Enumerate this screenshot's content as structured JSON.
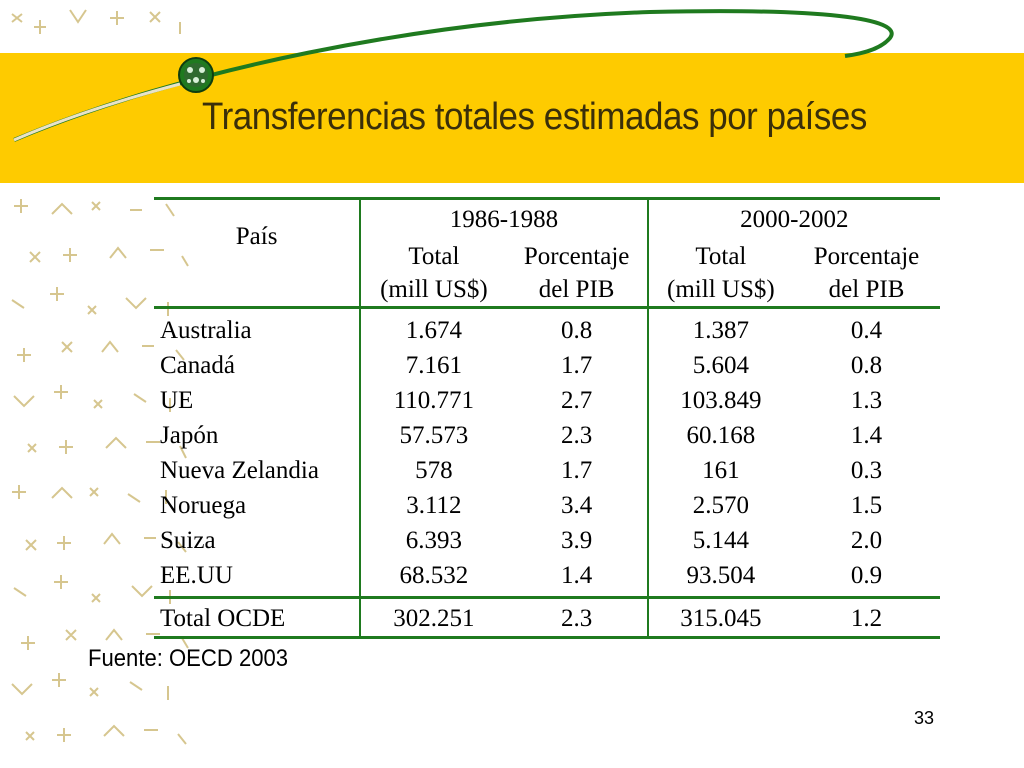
{
  "slide": {
    "title": "Transferencias totales estimadas por países",
    "source": "Fuente: OECD 2003",
    "number": "33",
    "colors": {
      "band": "#fecb00",
      "accent": "#1f7a1f",
      "swoosh": "#1f7a1f"
    }
  },
  "table": {
    "header": {
      "country": "País",
      "period_1": "1986-1988",
      "period_2": "2000-2002",
      "total_1": "Total",
      "total_unit_1": "(mill US$)",
      "pct_1": "Porcentaje",
      "pct_unit_1": "del PIB",
      "total_2": "Total",
      "total_unit_2": "(mill US$)",
      "pct_2": "Porcentaje",
      "pct_unit_2": "del PIB"
    },
    "rows": [
      {
        "country": "Australia",
        "total_8688": "1.674",
        "pct_8688": "0.8",
        "total_0002": "1.387",
        "pct_0002": "0.4"
      },
      {
        "country": "Canadá",
        "total_8688": "7.161",
        "pct_8688": "1.7",
        "total_0002": "5.604",
        "pct_0002": "0.8"
      },
      {
        "country": "UE",
        "total_8688": "110.771",
        "pct_8688": "2.7",
        "total_0002": "103.849",
        "pct_0002": "1.3"
      },
      {
        "country": "Japón",
        "total_8688": "57.573",
        "pct_8688": "2.3",
        "total_0002": "60.168",
        "pct_0002": "1.4"
      },
      {
        "country": "Nueva Zelandia",
        "total_8688": "578",
        "pct_8688": "1.7",
        "total_0002": "161",
        "pct_0002": "0.3"
      },
      {
        "country": "Noruega",
        "total_8688": "3.112",
        "pct_8688": "3.4",
        "total_0002": "2.570",
        "pct_0002": "1.5"
      },
      {
        "country": "Suiza",
        "total_8688": "6.393",
        "pct_8688": "3.9",
        "total_0002": "5.144",
        "pct_0002": "2.0"
      },
      {
        "country": "EE.UU",
        "total_8688": "68.532",
        "pct_8688": "1.4",
        "total_0002": "93.504",
        "pct_0002": "0.9"
      }
    ],
    "total_row": {
      "country": "Total OCDE",
      "total_8688": "302.251",
      "pct_8688": "2.3",
      "total_0002": "315.045",
      "pct_0002": "1.2"
    }
  }
}
